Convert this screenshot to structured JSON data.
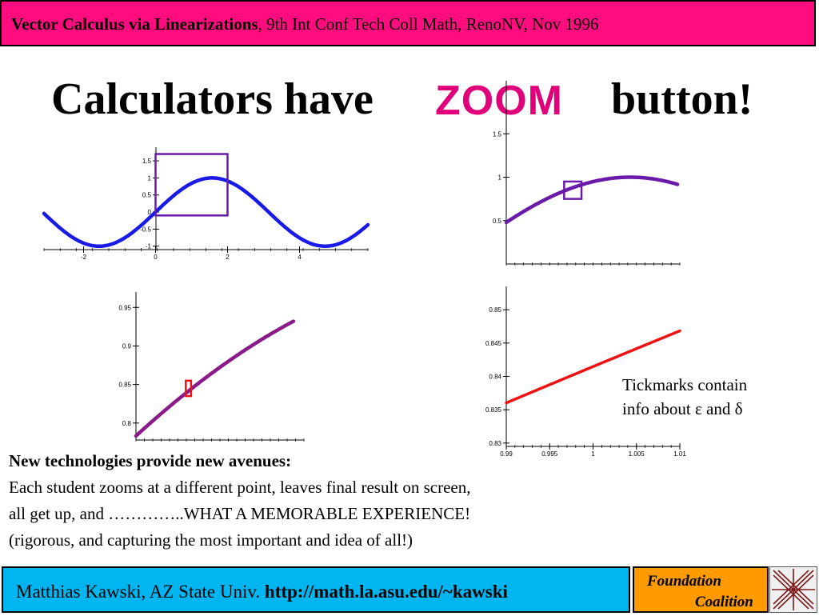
{
  "header": {
    "title_bold": "Vector Calculus via Linearizations",
    "title_rest": ", 9th Int Conf Tech Coll Math, RenoNV, Nov 1996"
  },
  "title": {
    "part1": "Calculators have",
    "zoom_word": "ZOOM",
    "part2": "button!"
  },
  "note": {
    "line1": "Tickmarks contain",
    "line2": "info about ε and δ"
  },
  "body": {
    "heading": "New technologies provide new  avenues:",
    "line1": "Each student zooms at a different point,  leaves final result on screen,",
    "line2": "all get up, and  …………..WHAT A MEMORABLE EXPERIENCE!",
    "line3": "(rigorous, and capturing the most important and idea of all!)"
  },
  "footer": {
    "author": "Matthias Kawski, AZ State Univ.",
    "url": "http://math.la.asu.edu/~kawski",
    "logo_line1": "Foundation",
    "logo_line2": "Coalition"
  },
  "colors": {
    "header_bg": "#ff0d7f",
    "zoom_word": "#e0007a",
    "footer_bg": "#00b5f0",
    "logo_bg": "#ff9a00",
    "curve1": "#1a1ae6",
    "curve_zoom": "#6a1aa8",
    "curve_line3": "#8a1a8a",
    "curve_line4": "#ee1111"
  },
  "chart_data": [
    {
      "type": "line",
      "function": "sin(x)",
      "x_ticks": [
        "-2",
        "0",
        "2",
        "4"
      ],
      "y_ticks": [
        "1.5",
        "1",
        "0.5",
        "0",
        "-0.5",
        "-1"
      ],
      "xlim": [
        -3.1,
        5.9
      ],
      "ylim": [
        -1.1,
        1.9
      ],
      "zoom_box": {
        "x": [
          0,
          2
        ],
        "y": [
          -0.1,
          1.7
        ]
      }
    },
    {
      "type": "line",
      "function": "sin(x)",
      "x_ticks": [],
      "y_ticks": [
        "1.5",
        "1",
        "0.5"
      ],
      "xlim": [
        0.5,
        2.0
      ],
      "ylim": [
        0,
        2
      ],
      "zoom_box": {
        "x": [
          1.0,
          1.15
        ],
        "y": [
          0.75,
          0.95
        ]
      }
    },
    {
      "type": "line",
      "function": "sin(x)",
      "x_ticks": [],
      "y_ticks": [
        "0.95",
        "0.9",
        "0.85",
        "0.8"
      ],
      "xlim": [
        0.9,
        1.22
      ],
      "ylim": [
        0.778,
        0.97
      ],
      "zoom_box": {
        "x": [
          0.995,
          1.005
        ],
        "y": [
          0.835,
          0.855
        ]
      }
    },
    {
      "type": "line",
      "function": "sin(x)",
      "x_ticks": [
        "0.99",
        "0.995",
        "1",
        "1.005",
        "1.01"
      ],
      "y_ticks": [
        "0.85",
        "0.845",
        "0.84",
        "0.835",
        "0.83"
      ],
      "xlim": [
        0.99,
        1.01
      ],
      "ylim": [
        0.8295,
        0.8535
      ]
    }
  ]
}
